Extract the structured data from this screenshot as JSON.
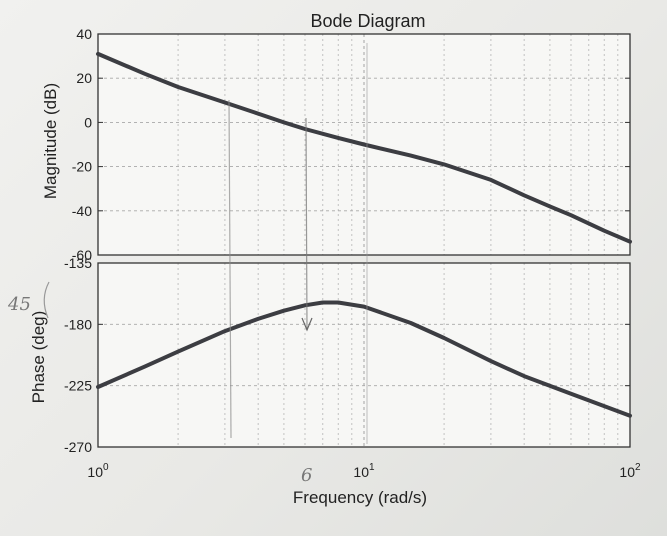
{
  "chart_data": [
    {
      "panel": "magnitude",
      "type": "line",
      "title": "Bode Diagram",
      "ylabel": "Magnitude (dB)",
      "xscale": "log",
      "xlim": [
        1,
        100
      ],
      "ylim": [
        -60,
        40
      ],
      "yticks": [
        "40",
        "20",
        "0",
        "-20",
        "-40",
        "-60"
      ],
      "ytick_values": [
        40,
        20,
        0,
        -20,
        -40,
        -60
      ],
      "grid": true,
      "series": [
        {
          "x": [
            1,
            1.5,
            2,
            3,
            4,
            5,
            6,
            8,
            10,
            15,
            20,
            30,
            40,
            50,
            60,
            80,
            100
          ],
          "values": [
            31,
            22,
            16,
            9,
            4,
            0,
            -3,
            -7,
            -10,
            -15,
            -19,
            -26,
            -33,
            -38,
            -42,
            -49,
            -54
          ]
        }
      ]
    },
    {
      "panel": "phase",
      "type": "line",
      "ylabel": "Phase (deg)",
      "xlabel": "Frequency  (rad/s)",
      "xscale": "log",
      "xlim": [
        1,
        100
      ],
      "ylim": [
        -270,
        -135
      ],
      "yticks": [
        "-135",
        "-180",
        "-225",
        "-270"
      ],
      "ytick_values": [
        -135,
        -180,
        -225,
        -270
      ],
      "xticks": [
        {
          "base": "10",
          "exp": "0",
          "value": 1
        },
        {
          "base": "10",
          "exp": "1",
          "value": 10
        },
        {
          "base": "10",
          "exp": "2",
          "value": 100
        }
      ],
      "grid": true,
      "series": [
        {
          "x": [
            1,
            1.5,
            2,
            3,
            4,
            5,
            6,
            7,
            8,
            10,
            15,
            20,
            30,
            40,
            60,
            100
          ],
          "values": [
            -226,
            -211,
            -200,
            -185,
            -176,
            -170,
            -166,
            -164,
            -164,
            -167,
            -179,
            -190,
            -207,
            -218,
            -231,
            -247
          ]
        }
      ]
    }
  ],
  "annotations": {
    "handwritten_6": "6",
    "handwritten_45": "45"
  }
}
